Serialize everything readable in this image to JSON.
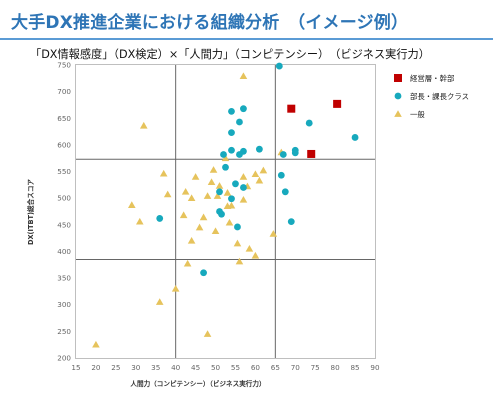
{
  "header": {
    "title": "大手DX推進企業における組織分析　（イメージ例）",
    "subtitle": "「DX情報感度」（DX検定）×「人間力」（コンピテンシー）　（ビジネス実行力）"
  },
  "colors": {
    "title": "#2e75b6",
    "rule": "#5b9bd5",
    "executive": "#c00000",
    "manager": "#17a9bd",
    "general": "#e6c35c",
    "quadrant_line": "#666666",
    "plot_border": "#bfbfbf"
  },
  "chart_data": {
    "type": "scatter",
    "xlabel": "人間力（コンピテンシー）（ビジネス実行力）",
    "ylabel": "DX(ITBT)総合スコア",
    "xlim": [
      15,
      90
    ],
    "ylim": [
      200,
      750
    ],
    "x_ticks": [
      15,
      20,
      25,
      30,
      35,
      40,
      45,
      50,
      55,
      60,
      65,
      70,
      75,
      80,
      85,
      90
    ],
    "y_ticks": [
      200,
      250,
      300,
      350,
      400,
      450,
      500,
      550,
      600,
      650,
      700,
      750
    ],
    "quadrant_lines": {
      "x": [
        40,
        65
      ],
      "y": [
        385,
        573
      ]
    },
    "grid": false,
    "legend_position": "right",
    "series": [
      {
        "name": "経営層・幹部",
        "marker": "square",
        "color": "#c00000",
        "points": [
          [
            69,
            668
          ],
          [
            74,
            583
          ],
          [
            80.5,
            677
          ]
        ]
      },
      {
        "name": "部長・課長クラス",
        "marker": "circle",
        "color": "#17a9bd",
        "points": [
          [
            66,
            748
          ],
          [
            73.5,
            641
          ],
          [
            85,
            614
          ],
          [
            70,
            590
          ],
          [
            70,
            585
          ],
          [
            67,
            582
          ],
          [
            61,
            592
          ],
          [
            57,
            588
          ],
          [
            54,
            590
          ],
          [
            52,
            582
          ],
          [
            56,
            582
          ],
          [
            54,
            663
          ],
          [
            57,
            668
          ],
          [
            56,
            643
          ],
          [
            54,
            623
          ],
          [
            66.5,
            543
          ],
          [
            52.5,
            558
          ],
          [
            55,
            527
          ],
          [
            51,
            512
          ],
          [
            54,
            499
          ],
          [
            57,
            520
          ],
          [
            67.5,
            512
          ],
          [
            51,
            475
          ],
          [
            51.5,
            470
          ],
          [
            69,
            456
          ],
          [
            55.5,
            446
          ],
          [
            36,
            462
          ],
          [
            47,
            360
          ]
        ]
      },
      {
        "name": "一般",
        "marker": "triangle",
        "color": "#e6c35c",
        "points": [
          [
            20,
            225
          ],
          [
            32,
            636
          ],
          [
            57,
            729
          ],
          [
            37,
            546
          ],
          [
            38,
            507
          ],
          [
            29,
            487
          ],
          [
            31,
            456
          ],
          [
            36,
            305
          ],
          [
            40,
            330
          ],
          [
            44,
            420
          ],
          [
            43,
            377
          ],
          [
            46,
            445
          ],
          [
            47,
            464
          ],
          [
            48,
            504
          ],
          [
            49,
            530
          ],
          [
            49.5,
            553
          ],
          [
            50.5,
            504
          ],
          [
            51,
            523
          ],
          [
            52.5,
            575
          ],
          [
            53,
            510
          ],
          [
            53,
            485
          ],
          [
            53.5,
            454
          ],
          [
            54,
            486
          ],
          [
            55.5,
            415
          ],
          [
            56,
            381
          ],
          [
            57,
            497
          ],
          [
            57,
            540
          ],
          [
            58,
            522
          ],
          [
            58.5,
            405
          ],
          [
            60,
            545
          ],
          [
            60,
            392
          ],
          [
            62,
            552
          ],
          [
            61,
            533
          ],
          [
            64.5,
            433
          ],
          [
            66.5,
            586
          ],
          [
            48,
            245
          ],
          [
            44,
            500
          ],
          [
            42.5,
            512
          ],
          [
            45,
            540
          ],
          [
            42,
            468
          ],
          [
            50,
            438
          ]
        ]
      }
    ]
  }
}
